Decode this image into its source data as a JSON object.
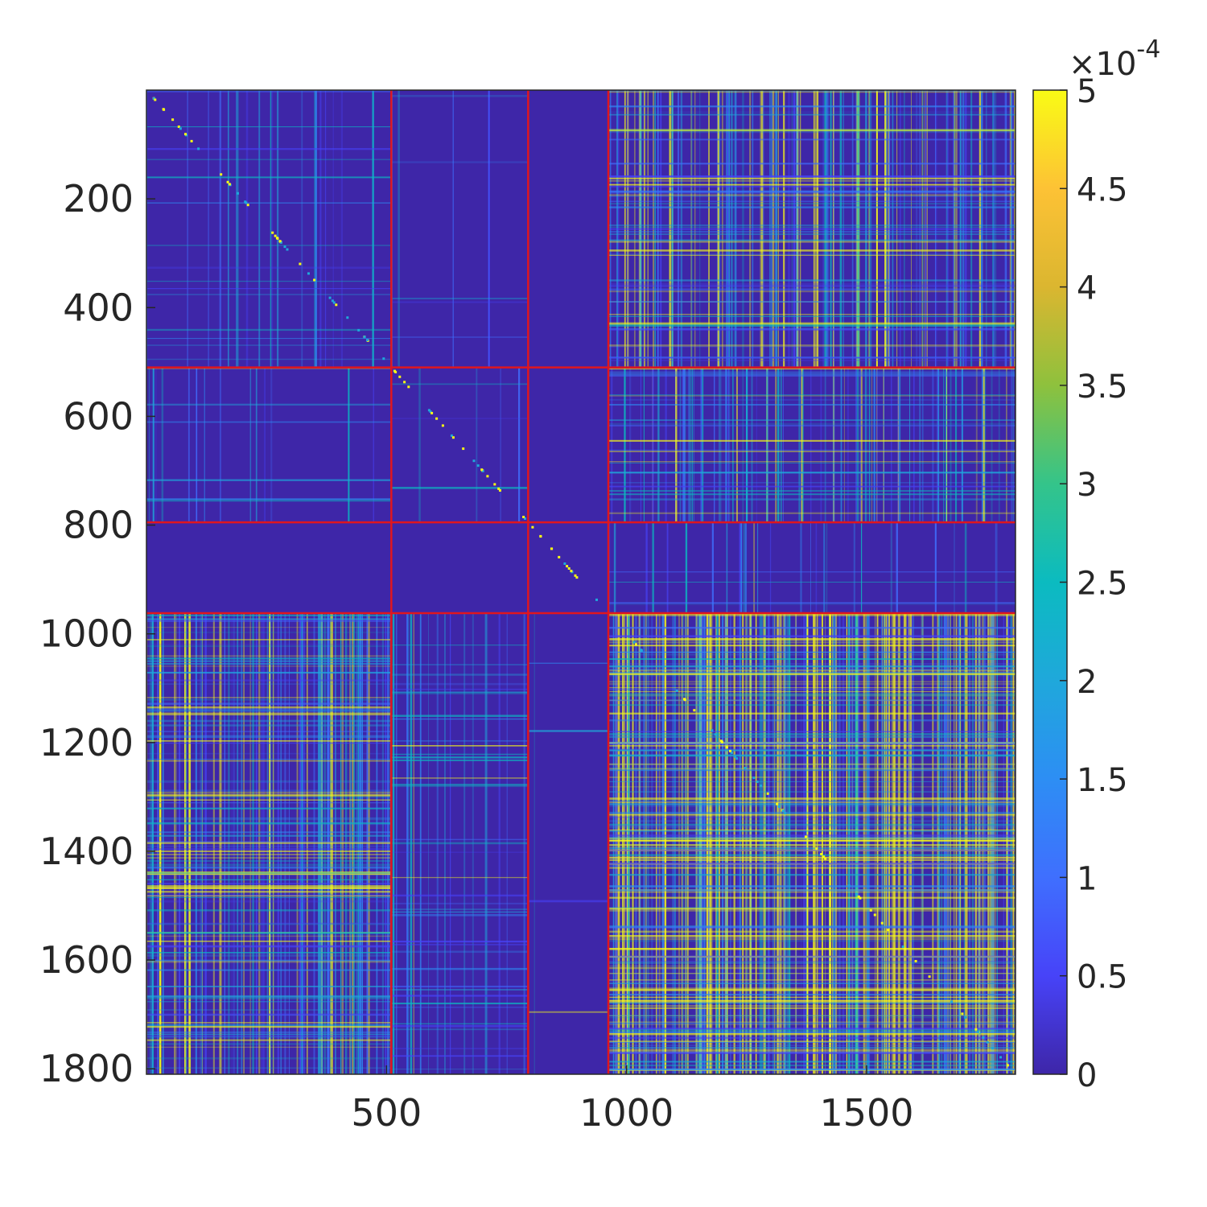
{
  "chart_data": {
    "type": "heatmap",
    "title": "",
    "xlabel": "",
    "ylabel": "",
    "matrix_size": 1810,
    "xlim": [
      1,
      1810
    ],
    "ylim": [
      1,
      1810
    ],
    "y_direction": "reverse",
    "x_ticks": [
      500,
      1000,
      1500
    ],
    "y_ticks": [
      200,
      400,
      600,
      800,
      1000,
      1200,
      1400,
      1600,
      1800
    ],
    "x_tick_labels": [
      "500",
      "1000",
      "1500"
    ],
    "y_tick_labels": [
      "200",
      "400",
      "600",
      "800",
      "1000",
      "1200",
      "1400",
      "1600",
      "1800"
    ],
    "block_boundaries": [
      510,
      795,
      962
    ],
    "boundary_color": "#e0161e",
    "colormap": "parula",
    "colorbar": {
      "location": "right",
      "clim": [
        0,
        0.0005
      ],
      "exponent_label": "×10",
      "exponent_power": "-4",
      "ticks": [
        0,
        0.5,
        1,
        1.5,
        2,
        2.5,
        3,
        3.5,
        4,
        4.5,
        5
      ],
      "tick_labels": [
        "0",
        "0.5",
        "1",
        "1.5",
        "2",
        "2.5",
        "3",
        "3.5",
        "4",
        "4.5",
        "5"
      ]
    },
    "block_density": {
      "rows": [
        "1-510",
        "510-795",
        "795-962",
        "962-1810"
      ],
      "cols": [
        "1-510",
        "510-795",
        "795-962",
        "962-1810"
      ],
      "values": [
        [
          0.12,
          0.05,
          0.0,
          0.45
        ],
        [
          0.08,
          0.04,
          0.0,
          0.35
        ],
        [
          0.0,
          0.0,
          0.0,
          0.1
        ],
        [
          0.55,
          0.2,
          0.02,
          0.85
        ]
      ]
    }
  }
}
